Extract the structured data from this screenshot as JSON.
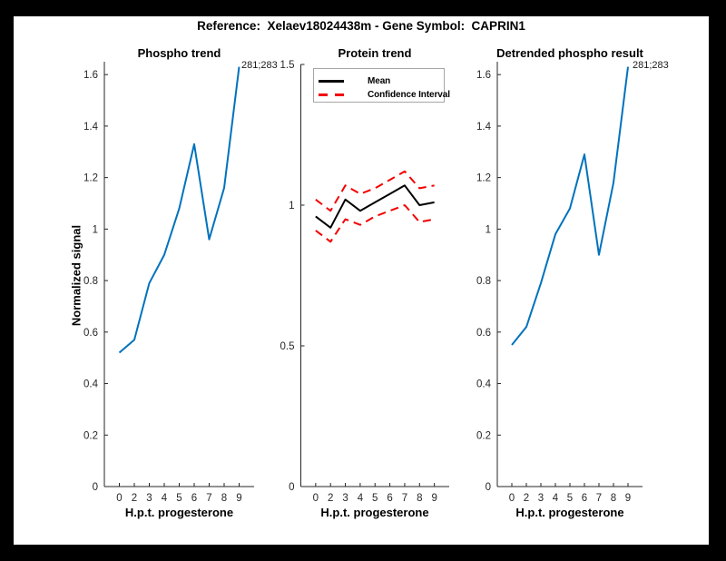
{
  "figure": {
    "title": "Reference:  Xelaev18024438m - Gene Symbol:  CAPRIN1"
  },
  "colors": {
    "line_blue": "#0072BD",
    "ci_red": "#f20000",
    "mean_black": "#000000",
    "axis": "#262626",
    "frame_background": "#000000",
    "figure_background": "#ffffff"
  },
  "chart_data": [
    {
      "type": "line",
      "title": "Phospho trend",
      "xlabel": "H.p.t. progesterone",
      "ylabel": "Normalized signal",
      "x_tick_labels": [
        "0",
        "2",
        "3",
        "4",
        "5",
        "6",
        "7",
        "8",
        "9"
      ],
      "x": [
        0,
        2,
        3,
        4,
        5,
        6,
        7,
        8,
        9
      ],
      "ylim": [
        0,
        1.65
      ],
      "yticks": [
        "0",
        "0.2",
        "0.4",
        "0.6",
        "0.8",
        "1",
        "1.2",
        "1.4",
        "1.6"
      ],
      "annotation": "281;283",
      "grid": false,
      "series": [
        {
          "name": "phospho trend",
          "color": "#0072BD",
          "style": "solid",
          "values": [
            0.52,
            0.57,
            0.79,
            0.9,
            1.08,
            1.33,
            0.96,
            1.16,
            1.63
          ]
        }
      ]
    },
    {
      "type": "line",
      "title": "Protein trend",
      "xlabel": "H.p.t. progesterone",
      "ylabel": "",
      "x_tick_labels": [
        "0",
        "2",
        "3",
        "4",
        "5",
        "6",
        "7",
        "8",
        "9"
      ],
      "x": [
        0,
        2,
        3,
        4,
        5,
        6,
        7,
        8,
        9
      ],
      "ylim": [
        0,
        1.5
      ],
      "yticks": [
        "0",
        "0.5",
        "1",
        "1.5"
      ],
      "annotation": "",
      "grid": false,
      "legend": [
        {
          "label": "Mean",
          "color": "#000000",
          "style": "solid"
        },
        {
          "label": "Confidence Interval",
          "color": "#f20000",
          "style": "dashed"
        }
      ],
      "legend_position": "northeast",
      "series": [
        {
          "name": "Mean",
          "color": "#000000",
          "style": "solid",
          "values": [
            0.96,
            0.92,
            1.02,
            0.98,
            1.01,
            1.04,
            1.07,
            1.0,
            1.01
          ]
        },
        {
          "name": "Confidence Interval upper",
          "color": "#f20000",
          "style": "dashed",
          "values": [
            1.02,
            0.98,
            1.07,
            1.04,
            1.06,
            1.09,
            1.12,
            1.06,
            1.07
          ]
        },
        {
          "name": "Confidence Interval lower",
          "color": "#f20000",
          "style": "dashed",
          "values": [
            0.91,
            0.87,
            0.95,
            0.93,
            0.96,
            0.98,
            1.0,
            0.94,
            0.95
          ]
        }
      ]
    },
    {
      "type": "line",
      "title": "Detrended phospho result",
      "xlabel": "H.p.t. progesterone",
      "ylabel": "",
      "x_tick_labels": [
        "0",
        "2",
        "3",
        "4",
        "5",
        "6",
        "7",
        "8",
        "9"
      ],
      "x": [
        0,
        2,
        3,
        4,
        5,
        6,
        7,
        8,
        9
      ],
      "ylim": [
        0,
        1.65
      ],
      "yticks": [
        "0",
        "0.2",
        "0.4",
        "0.6",
        "0.8",
        "1",
        "1.2",
        "1.4",
        "1.6"
      ],
      "annotation": "281;283",
      "grid": false,
      "series": [
        {
          "name": "detrended phospho",
          "color": "#0072BD",
          "style": "solid",
          "values": [
            0.55,
            0.62,
            0.79,
            0.98,
            1.08,
            1.29,
            0.9,
            1.18,
            1.63
          ]
        }
      ]
    }
  ]
}
